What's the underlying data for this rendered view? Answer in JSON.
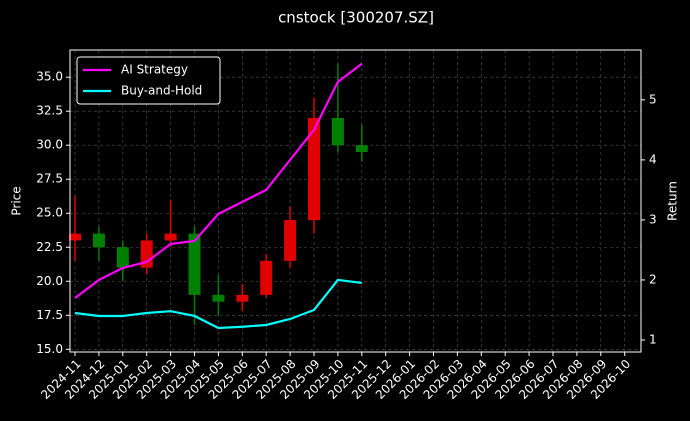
{
  "chart_data": {
    "type": "candlestick",
    "title": "cnstock [300207.SZ]",
    "x": [
      "2024-11",
      "2024-12",
      "2025-01",
      "2025-02",
      "2025-03",
      "2025-04",
      "2025-05",
      "2025-06",
      "2025-07",
      "2025-08",
      "2025-09",
      "2025-10",
      "2025-11"
    ],
    "open": [
      23.0,
      23.5,
      22.5,
      21.0,
      23.0,
      23.5,
      19.0,
      18.5,
      19.0,
      21.5,
      24.5,
      32.0,
      30.0
    ],
    "high": [
      26.3,
      24.0,
      23.0,
      23.5,
      26.0,
      24.0,
      20.5,
      19.8,
      22.0,
      25.5,
      33.5,
      36.0,
      31.5
    ],
    "low": [
      21.5,
      21.5,
      20.0,
      20.5,
      22.5,
      16.8,
      17.5,
      17.8,
      18.8,
      21.0,
      23.5,
      29.5,
      28.8
    ],
    "close": [
      23.5,
      22.5,
      21.0,
      23.0,
      23.5,
      19.0,
      18.5,
      19.0,
      21.5,
      24.5,
      32.0,
      30.0,
      29.5
    ],
    "up_color": "#e00000",
    "down_color": "#008000",
    "ylabel": "Price",
    "ylim": [
      14.8,
      37.0
    ],
    "yticks": [
      {
        "value": 15,
        "label": "15.0"
      },
      {
        "value": 17.5,
        "label": "17.5"
      },
      {
        "value": 20,
        "label": "20.0"
      },
      {
        "value": 22.5,
        "label": "22.5"
      },
      {
        "value": 25,
        "label": "25.0"
      },
      {
        "value": 27.5,
        "label": "27.5"
      },
      {
        "value": 30,
        "label": "30.0"
      },
      {
        "value": 32.5,
        "label": "32.5"
      },
      {
        "value": 35,
        "label": "35.0"
      }
    ],
    "y2label": "Return",
    "y2lim": [
      0.8,
      5.83
    ],
    "y2ticks": [
      1,
      2,
      3,
      4,
      5
    ],
    "xticks": [
      "2024-11",
      "2024-12",
      "2025-01",
      "2025-02",
      "2025-03",
      "2025-04",
      "2025-05",
      "2025-06",
      "2025-07",
      "2025-08",
      "2025-09",
      "2025-10",
      "2025-11",
      "2025-12",
      "2026-01",
      "2026-02",
      "2026-03",
      "2026-04",
      "2026-05",
      "2026-06",
      "2026-07",
      "2026-08",
      "2026-09",
      "2026-10"
    ],
    "series": [
      {
        "name": "AI Strategy",
        "color": "#ff00ff",
        "axis": "y2",
        "values": [
          1.7,
          2.0,
          2.2,
          2.3,
          2.6,
          2.65,
          3.1,
          3.3,
          3.5,
          4.0,
          4.5,
          5.3,
          5.6
        ]
      },
      {
        "name": "Buy-and-Hold",
        "color": "#00ffff",
        "axis": "y2",
        "values": [
          1.45,
          1.4,
          1.4,
          1.45,
          1.48,
          1.4,
          1.2,
          1.22,
          1.25,
          1.35,
          1.5,
          2.0,
          1.95
        ]
      }
    ],
    "grid": true,
    "legend": "upper left"
  }
}
